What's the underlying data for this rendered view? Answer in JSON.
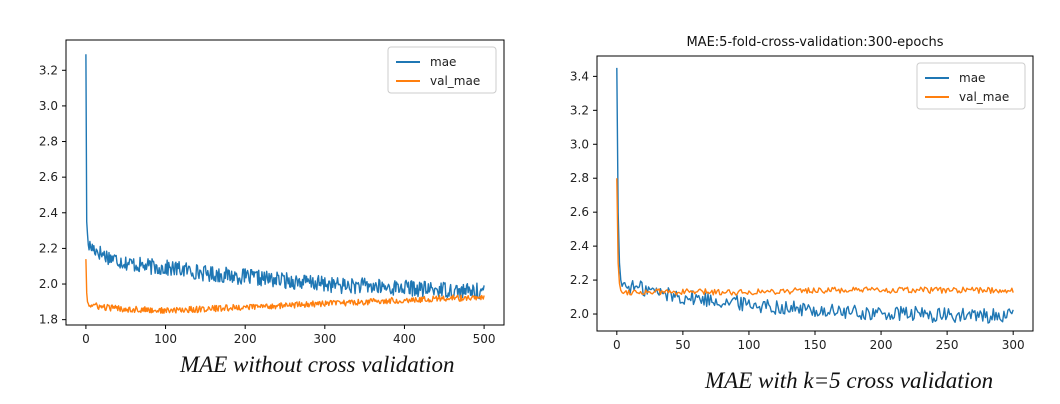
{
  "captions": [
    "MAE without cross validation",
    "MAE with k=5 cross validation"
  ],
  "colors": {
    "mae": "#1f77b4",
    "val_mae": "#ff7f0e"
  },
  "chart_data": [
    {
      "type": "line",
      "title": "",
      "xlabel": "",
      "ylabel": "",
      "xlim": [
        -25,
        525
      ],
      "ylim": [
        1.77,
        3.37
      ],
      "xticks": [
        0,
        100,
        200,
        300,
        400,
        500
      ],
      "yticks": [
        1.8,
        2.0,
        2.2,
        2.4,
        2.6,
        2.8,
        3.0,
        3.2
      ],
      "ytick_labels": [
        "1.8",
        "2.0",
        "2.2",
        "2.4",
        "2.6",
        "2.8",
        "3.0",
        "3.2"
      ],
      "legend": "top-right",
      "series": [
        {
          "name": "mae",
          "color": "#1f77b4",
          "x": [
            0,
            1,
            2,
            3,
            5,
            10,
            20,
            30,
            50,
            75,
            100,
            125,
            150,
            175,
            200,
            225,
            250,
            275,
            300,
            325,
            350,
            375,
            400,
            425,
            450,
            475,
            500
          ],
          "y": [
            3.29,
            2.35,
            2.28,
            2.22,
            2.21,
            2.2,
            2.17,
            2.15,
            2.12,
            2.1,
            2.09,
            2.08,
            2.06,
            2.05,
            2.04,
            2.03,
            2.02,
            2.01,
            2.0,
            1.99,
            1.99,
            1.98,
            1.98,
            1.97,
            1.97,
            1.96,
            1.96
          ]
        },
        {
          "name": "val_mae",
          "color": "#ff7f0e",
          "x": [
            0,
            1,
            2,
            3,
            5,
            10,
            20,
            50,
            100,
            150,
            200,
            250,
            300,
            350,
            400,
            450,
            500
          ],
          "y": [
            2.14,
            1.95,
            1.9,
            1.89,
            1.88,
            1.88,
            1.87,
            1.86,
            1.85,
            1.86,
            1.87,
            1.88,
            1.89,
            1.9,
            1.91,
            1.92,
            1.92
          ]
        }
      ]
    },
    {
      "type": "line",
      "title": "MAE:5-fold-cross-validation:300-epochs",
      "xlabel": "",
      "ylabel": "",
      "xlim": [
        -15,
        315
      ],
      "ylim": [
        1.9,
        3.52
      ],
      "xticks": [
        0,
        50,
        100,
        150,
        200,
        250,
        300
      ],
      "yticks": [
        2.0,
        2.2,
        2.4,
        2.6,
        2.8,
        3.0,
        3.2,
        3.4
      ],
      "ytick_labels": [
        "2.0",
        "2.2",
        "2.4",
        "2.6",
        "2.8",
        "3.0",
        "3.2",
        "3.4"
      ],
      "legend": "top-right",
      "series": [
        {
          "name": "mae",
          "color": "#1f77b4",
          "x": [
            0,
            1,
            2,
            3,
            5,
            10,
            20,
            30,
            50,
            75,
            100,
            125,
            150,
            175,
            200,
            225,
            250,
            275,
            300
          ],
          "y": [
            3.45,
            2.6,
            2.3,
            2.2,
            2.17,
            2.16,
            2.15,
            2.13,
            2.1,
            2.08,
            2.06,
            2.04,
            2.02,
            2.01,
            2.0,
            2.0,
            1.99,
            1.99,
            1.99
          ]
        },
        {
          "name": "val_mae",
          "color": "#ff7f0e",
          "x": [
            0,
            1,
            2,
            3,
            5,
            10,
            50,
            100,
            150,
            200,
            250,
            300
          ],
          "y": [
            2.8,
            2.3,
            2.18,
            2.14,
            2.13,
            2.13,
            2.13,
            2.13,
            2.14,
            2.14,
            2.14,
            2.14
          ]
        }
      ]
    }
  ]
}
